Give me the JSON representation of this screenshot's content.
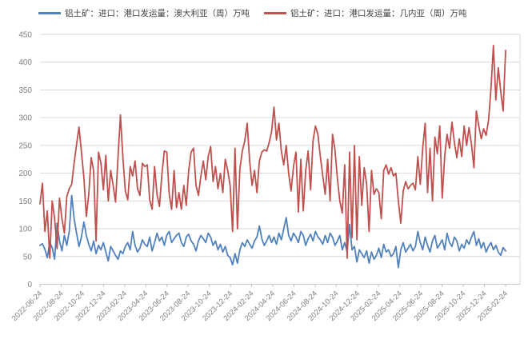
{
  "chart_data": {
    "type": "line",
    "title": "",
    "xlabel": "",
    "ylabel": "",
    "ylim": [
      0,
      450
    ],
    "y_ticks": [
      0,
      50,
      100,
      150,
      200,
      250,
      300,
      350,
      400,
      450
    ],
    "grid": "horizontal",
    "legend_position": "top",
    "x_tick_labels": [
      "2022-06-24",
      "2022-08-24",
      "2022-10-24",
      "2022-12-24",
      "2023-02-24",
      "2023-04-24",
      "2023-06-24",
      "2023-08-24",
      "2023-10-24",
      "2023-12-24",
      "2024-02-24",
      "2024-04-24",
      "2024-06-24",
      "2024-08-24",
      "2024-10-24",
      "2024-12-24",
      "2025-02-24",
      "2025-04-24",
      "2025-06-24",
      "2025-08-24",
      "2025-10-24",
      "2025-12-24",
      "2026-02-24"
    ],
    "x_unit": "weekly",
    "series": [
      {
        "name": "铝土矿：进口：港口发运量：澳大利亚（周）万吨",
        "color": "#4F81BD",
        "values": [
          70,
          73,
          63,
          48,
          75,
          66,
          45,
          110,
          78,
          60,
          88,
          70,
          95,
          160,
          118,
          92,
          68,
          85,
          112,
          88,
          72,
          60,
          78,
          55,
          70,
          62,
          75,
          58,
          42,
          68,
          60,
          52,
          45,
          60,
          55,
          68,
          75,
          62,
          95,
          70,
          58,
          65,
          80,
          72,
          68,
          85,
          60,
          75,
          92,
          78,
          85,
          70,
          88,
          95,
          75,
          82,
          88,
          92,
          75,
          68,
          85,
          90,
          78,
          72,
          60,
          78,
          88,
          82,
          75,
          92,
          85,
          70,
          78,
          62,
          72,
          58,
          68,
          52,
          48,
          35,
          55,
          38,
          62,
          75,
          68,
          80,
          72,
          65,
          78,
          85,
          105,
          82,
          70,
          78,
          88,
          75,
          85,
          72,
          92,
          80,
          100,
          120,
          88,
          78,
          92,
          85,
          75,
          95,
          88,
          70,
          82,
          90,
          78,
          95,
          85,
          80,
          72,
          88,
          75,
          92,
          85,
          70,
          78,
          88,
          62,
          75,
          58,
          108,
          62,
          68,
          40,
          62,
          55,
          48,
          60,
          38,
          58,
          45,
          52,
          65,
          48,
          72,
          58,
          62,
          50,
          55,
          68,
          30,
          62,
          75,
          58,
          65,
          72,
          60,
          68,
          95,
          75,
          62,
          85,
          70,
          58,
          78,
          88,
          65,
          72,
          80,
          62,
          92,
          75,
          68,
          85,
          78,
          60,
          72,
          65,
          80,
          72,
          85,
          95,
          70,
          82,
          65,
          75,
          58,
          68,
          75,
          62,
          70,
          58,
          52,
          66,
          60
        ]
      },
      {
        "name": "铝土矿：进口：港口发运量：几内亚（周）万吨",
        "color": "#C0504D",
        "values": [
          145,
          182,
          95,
          132,
          47,
          150,
          118,
          64,
          155,
          118,
          92,
          158,
          172,
          180,
          218,
          252,
          283,
          238,
          192,
          122,
          162,
          228,
          204,
          78,
          238,
          218,
          170,
          232,
          150,
          205,
          178,
          148,
          228,
          305,
          228,
          168,
          152,
          212,
          195,
          222,
          172,
          160,
          218,
          212,
          215,
          152,
          135,
          212,
          162,
          140,
          198,
          240,
          238,
          162,
          135,
          205,
          138,
          165,
          135,
          178,
          142,
          205,
          238,
          245,
          178,
          160,
          195,
          222,
          188,
          230,
          248,
          185,
          212,
          172,
          200,
          165,
          225,
          205,
          178,
          95,
          245,
          100,
          208,
          240,
          258,
          290,
          222,
          178,
          205,
          165,
          222,
          238,
          242,
          240,
          255,
          275,
          319,
          260,
          290,
          240,
          215,
          250,
          200,
          168,
          212,
          238,
          130,
          225,
          132,
          205,
          240,
          170,
          258,
          285,
          270,
          230,
          195,
          162,
          225,
          150,
          270,
          242,
          190,
          150,
          128,
          215,
          47,
          238,
          84,
          250,
          80,
          230,
          142,
          210,
          180,
          95,
          205,
          162,
          172,
          165,
          118,
          205,
          215,
          198,
          210,
          195,
          200,
          150,
          110,
          168,
          185,
          172,
          178,
          182,
          170,
          230,
          180,
          245,
          290,
          165,
          245,
          150,
          265,
          235,
          285,
          155,
          230,
          270,
          245,
          292,
          255,
          228,
          262,
          230,
          285,
          250,
          282,
          252,
          210,
          312,
          285,
          262,
          280,
          268,
          295,
          352,
          430,
          332,
          390,
          347,
          312,
          421
        ]
      }
    ]
  },
  "colors": {
    "background": "#FFFFFF",
    "gridline": "#DADADA",
    "axis_line": "#C6C6C6",
    "tick_mark": "#BFBFBF",
    "tick_label": "#808080",
    "legend_text": "#404040"
  }
}
